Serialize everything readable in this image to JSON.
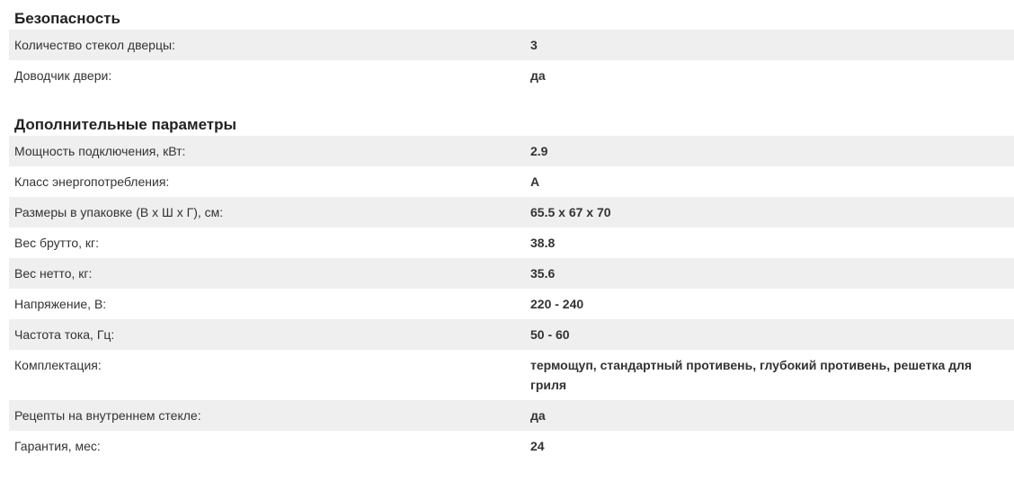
{
  "sections": [
    {
      "title": "Безопасность",
      "rows": [
        {
          "label": "Количество стекол дверцы:",
          "value": "3"
        },
        {
          "label": "Доводчик двери:",
          "value": "да"
        }
      ]
    },
    {
      "title": "Дополнительные параметры",
      "rows": [
        {
          "label": "Мощность подключения, кВт:",
          "value": "2.9"
        },
        {
          "label": "Класс энергопотребления:",
          "value": "A"
        },
        {
          "label": "Размеры в упаковке (В x Ш x Г), см:",
          "value": "65.5 x 67 x 70"
        },
        {
          "label": "Вес брутто, кг:",
          "value": "38.8"
        },
        {
          "label": "Вес нетто, кг:",
          "value": "35.6"
        },
        {
          "label": "Напряжение, В:",
          "value": "220 - 240"
        },
        {
          "label": "Частота тока, Гц:",
          "value": "50 - 60"
        },
        {
          "label": "Комплектация:",
          "value": "термощуп, стандартный противень, глубокий противень, решетка для гриля"
        },
        {
          "label": "Рецепты на внутреннем стекле:",
          "value": "да"
        },
        {
          "label": "Гарантия, мес:",
          "value": "24"
        }
      ]
    }
  ]
}
